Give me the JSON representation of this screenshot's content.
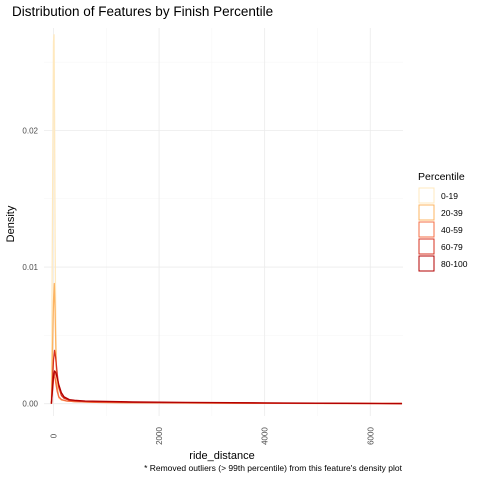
{
  "chart_data": {
    "type": "line",
    "title": "Distribution of Features by Finish Percentile",
    "xlabel": "ride_distance",
    "ylabel": "Density",
    "caption": "* Removed outliers (> 99th percentile) from this feature's density plot",
    "xlim": [
      -180,
      6620
    ],
    "ylim": [
      -0.0009,
      0.0275
    ],
    "x_ticks": [
      0,
      2000,
      4000,
      6000
    ],
    "x_tick_labels": [
      "0",
      "2000",
      "4000",
      "6000"
    ],
    "y_ticks": [
      0,
      0.01,
      0.02
    ],
    "y_tick_labels": [
      "0.00",
      "0.01",
      "0.02"
    ],
    "grid": true,
    "legend": {
      "title": "Percentile",
      "position": "right"
    },
    "series": [
      {
        "name": "0-19",
        "color": "#ffe9bf",
        "x": [
          -40,
          0,
          10,
          20,
          30,
          45,
          60,
          80,
          100,
          150,
          250,
          400,
          800,
          1500,
          3000,
          5000,
          6600
        ],
        "y": [
          0,
          0.0265,
          0.027,
          0.021,
          0.012,
          0.005,
          0.002,
          0.0008,
          0.0004,
          0.00025,
          0.0002,
          0.00015,
          0.0001,
          7e-05,
          4e-05,
          2e-05,
          1e-05
        ]
      },
      {
        "name": "20-39",
        "color": "#fdb462",
        "x": [
          -40,
          0,
          15,
          30,
          50,
          70,
          100,
          150,
          250,
          400,
          800,
          1500,
          3000,
          5000,
          6600
        ],
        "y": [
          0,
          0.0075,
          0.0088,
          0.0068,
          0.003,
          0.0012,
          0.0005,
          0.0003,
          0.0002,
          0.00015,
          0.0001,
          7e-05,
          4e-05,
          2e-05,
          1e-05
        ]
      },
      {
        "name": "40-59",
        "color": "#f46d43",
        "x": [
          -40,
          0,
          20,
          40,
          70,
          100,
          150,
          250,
          400,
          800,
          1500,
          3000,
          5000,
          6600
        ],
        "y": [
          0,
          0.0018,
          0.0022,
          0.0016,
          0.0009,
          0.0005,
          0.0003,
          0.0002,
          0.00015,
          0.0001,
          8e-05,
          5e-05,
          3e-05,
          1e-05
        ]
      },
      {
        "name": "60-79",
        "color": "#d7301f",
        "x": [
          -40,
          0,
          20,
          40,
          70,
          100,
          150,
          200,
          300,
          500,
          800,
          1500,
          3000,
          5000,
          6600
        ],
        "y": [
          0,
          0.0032,
          0.0039,
          0.0034,
          0.0022,
          0.0012,
          0.0006,
          0.0004,
          0.00025,
          0.00018,
          0.00015,
          0.0001,
          6e-05,
          3e-05,
          1e-05
        ]
      },
      {
        "name": "80-100",
        "color": "#b30000",
        "x": [
          -40,
          0,
          20,
          40,
          70,
          100,
          150,
          200,
          300,
          400,
          600,
          1000,
          1500,
          2500,
          4000,
          5500,
          6600
        ],
        "y": [
          0,
          0.002,
          0.0024,
          0.0023,
          0.0019,
          0.0014,
          0.0008,
          0.0005,
          0.0003,
          0.00025,
          0.0002,
          0.00017,
          0.00013,
          0.0001,
          6e-05,
          3e-05,
          1e-05
        ]
      }
    ]
  }
}
